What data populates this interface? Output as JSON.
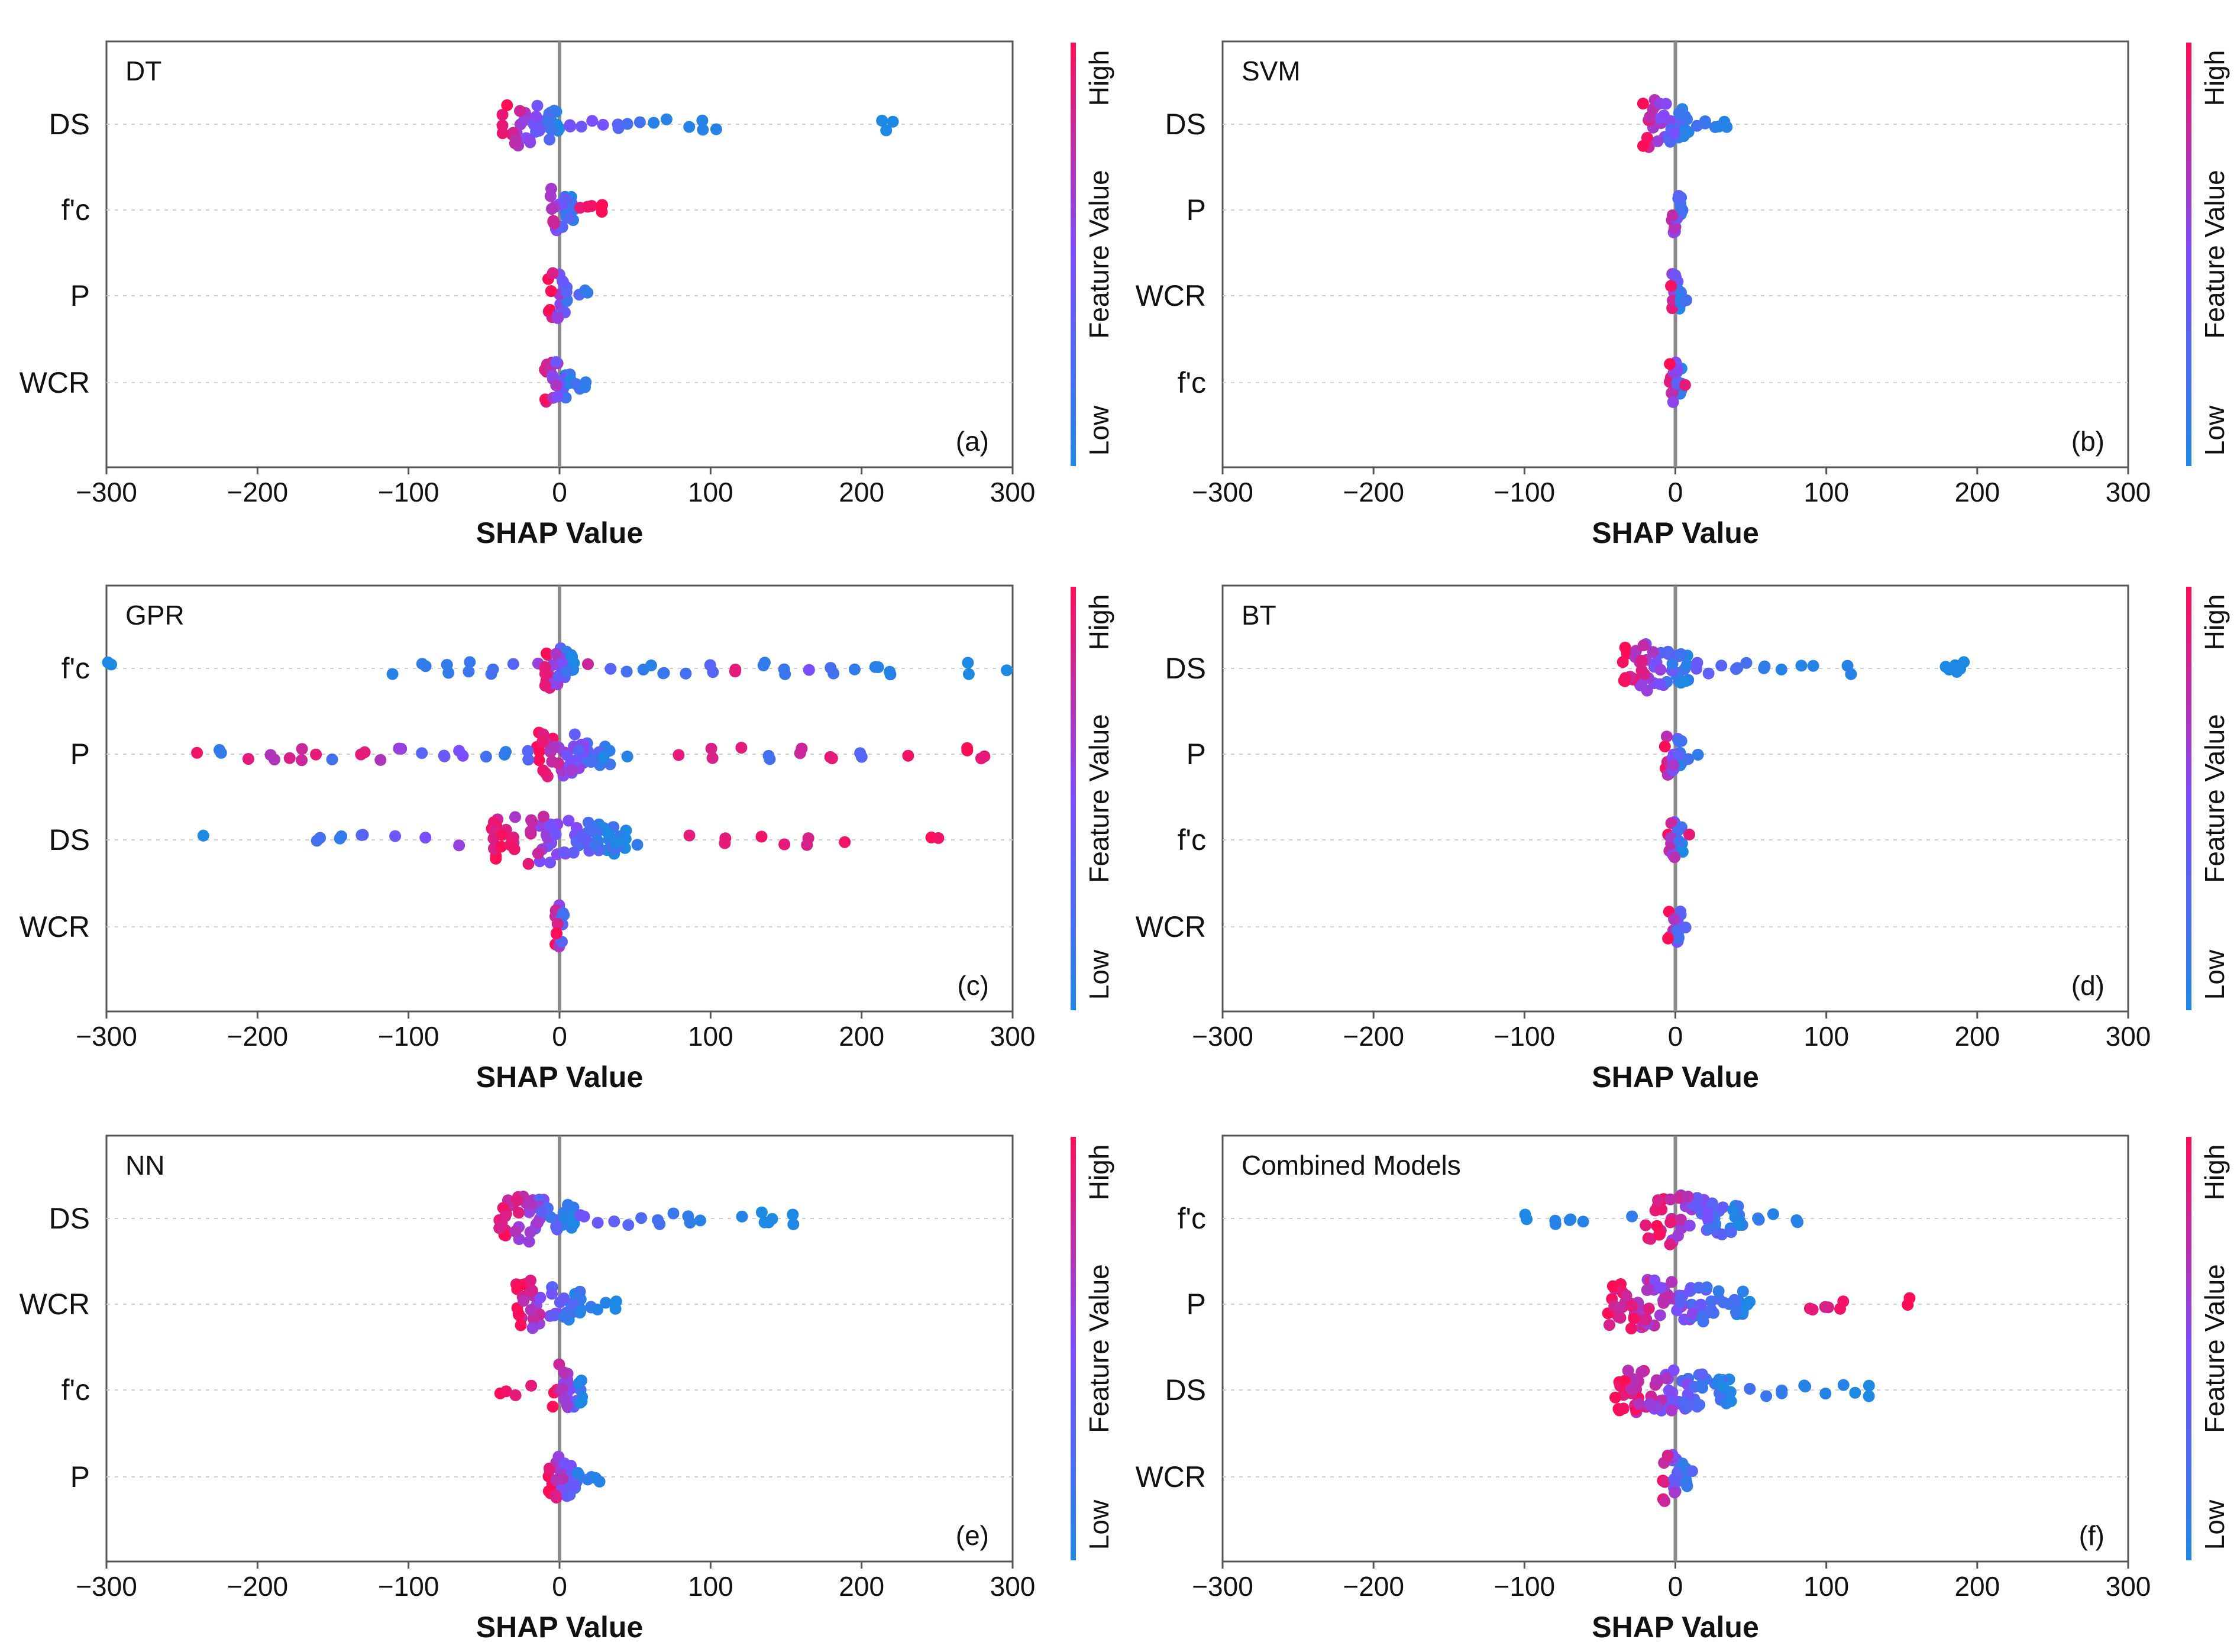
{
  "chart_data": [
    {
      "type": "scatter",
      "title": "DT",
      "panel_letter": "(a)",
      "xlabel": "SHAP Value",
      "xlim": [
        -300,
        300
      ],
      "xticks": [
        "−300",
        "−200",
        "−100",
        "0",
        "100",
        "200",
        "300"
      ],
      "features": [
        {
          "name": "DS",
          "core": [
            -38,
            0
          ],
          "tail": [
            [
              8,
              0.45
            ],
            [
              15,
              0.4
            ],
            [
              22,
              0.5
            ],
            [
              30,
              0.45
            ],
            [
              38,
              0.3
            ],
            [
              45,
              0.2
            ],
            [
              52,
              0.2
            ],
            [
              62,
              0.05
            ],
            [
              72,
              0.05
            ],
            [
              85,
              0.05
            ],
            [
              95,
              0.05
            ],
            [
              105,
              0.05
            ],
            [
              212,
              0.0
            ],
            [
              216,
              0.0
            ],
            [
              220,
              0.0
            ]
          ]
        },
        {
          "name": "f'c",
          "core": [
            -10,
            10
          ],
          "tail": [
            [
              15,
              0.9
            ],
            [
              20,
              0.95
            ],
            [
              28,
              1.0
            ]
          ]
        },
        {
          "name": "P",
          "core": [
            -8,
            8
          ],
          "tail": [
            [
              12,
              0.3
            ],
            [
              18,
              0.1
            ]
          ]
        },
        {
          "name": "WCR",
          "core": [
            -10,
            8
          ],
          "tail": [
            [
              12,
              0.2
            ],
            [
              18,
              0.1
            ]
          ]
        }
      ],
      "colorbar": {
        "high": "High",
        "low": "Low",
        "label": "Feature Value"
      }
    },
    {
      "type": "scatter",
      "title": "SVM",
      "panel_letter": "(b)",
      "xlabel": "SHAP Value",
      "xlim": [
        -300,
        300
      ],
      "xticks": [
        "−300",
        "−200",
        "−100",
        "0",
        "100",
        "200",
        "300"
      ],
      "features": [
        {
          "name": "DS",
          "core": [
            -22,
            10
          ],
          "tail": [
            [
              15,
              0.2
            ],
            [
              20,
              0.15
            ],
            [
              25,
              0.1
            ],
            [
              30,
              0.05
            ],
            [
              34,
              0.05
            ]
          ]
        },
        {
          "name": "P",
          "core": [
            -4,
            4
          ],
          "tail": [
            [
              6,
              0.2
            ]
          ]
        },
        {
          "name": "WCR",
          "core": [
            -4,
            4
          ],
          "tail": [
            [
              6,
              0.2
            ]
          ]
        },
        {
          "name": "f'c",
          "core": [
            -4,
            5
          ],
          "tail": [
            [
              7,
              0.9
            ]
          ]
        }
      ],
      "colorbar": {
        "high": "High",
        "low": "Low",
        "label": "Feature Value"
      }
    },
    {
      "type": "scatter",
      "title": "GPR",
      "panel_letter": "(c)",
      "xlabel": "SHAP Value",
      "xlim": [
        -300,
        300
      ],
      "xticks": [
        "−300",
        "−200",
        "−100",
        "0",
        "100",
        "200",
        "300"
      ],
      "features": [
        {
          "name": "f'c",
          "core": [
            -10,
            10
          ],
          "tail": [
            [
              -298,
              0.0
            ],
            [
              -110,
              0.05
            ],
            [
              -90,
              0.1
            ],
            [
              -75,
              0.1
            ],
            [
              -60,
              0.15
            ],
            [
              -45,
              0.2
            ],
            [
              -30,
              0.3
            ],
            [
              -15,
              0.6
            ],
            [
              -10,
              0.9
            ],
            [
              20,
              0.8
            ],
            [
              35,
              0.3
            ],
            [
              45,
              0.2
            ],
            [
              55,
              0.1
            ],
            [
              62,
              0.05
            ],
            [
              70,
              0.15
            ],
            [
              85,
              0.2
            ],
            [
              100,
              0.3
            ],
            [
              115,
              0.9
            ],
            [
              135,
              0.1
            ],
            [
              150,
              0.15
            ],
            [
              165,
              0.5
            ],
            [
              180,
              0.2
            ],
            [
              195,
              0.1
            ],
            [
              210,
              0.05
            ],
            [
              220,
              0.05
            ],
            [
              270,
              0.0
            ],
            [
              296,
              0.0
            ]
          ]
        },
        {
          "name": "P",
          "core": [
            -15,
            35
          ],
          "tail": [
            [
              -240,
              0.95
            ],
            [
              -225,
              0.1
            ],
            [
              -205,
              0.9
            ],
            [
              -190,
              0.7
            ],
            [
              -180,
              0.85
            ],
            [
              -170,
              0.8
            ],
            [
              -160,
              0.9
            ],
            [
              -150,
              0.2
            ],
            [
              -130,
              0.9
            ],
            [
              -120,
              0.7
            ],
            [
              -105,
              0.6
            ],
            [
              -90,
              0.3
            ],
            [
              -75,
              0.4
            ],
            [
              -65,
              0.5
            ],
            [
              -50,
              0.2
            ],
            [
              -35,
              0.1
            ],
            [
              -20,
              0.3
            ],
            [
              45,
              0.05
            ],
            [
              80,
              0.9
            ],
            [
              100,
              0.85
            ],
            [
              120,
              0.9
            ],
            [
              140,
              0.2
            ],
            [
              160,
              0.8
            ],
            [
              180,
              0.9
            ],
            [
              200,
              0.3
            ],
            [
              230,
              0.95
            ],
            [
              270,
              1.0
            ],
            [
              280,
              0.9
            ]
          ]
        },
        {
          "name": "DS",
          "core": [
            -45,
            45
          ],
          "tail": [
            [
              -235,
              0.0
            ],
            [
              -160,
              0.2
            ],
            [
              -145,
              0.1
            ],
            [
              -130,
              0.3
            ],
            [
              -110,
              0.4
            ],
            [
              -90,
              0.5
            ],
            [
              -65,
              0.6
            ],
            [
              50,
              0.1
            ],
            [
              85,
              0.9
            ],
            [
              110,
              0.9
            ],
            [
              135,
              0.95
            ],
            [
              150,
              0.9
            ],
            [
              165,
              0.85
            ],
            [
              190,
              0.95
            ],
            [
              245,
              1.0
            ],
            [
              250,
              0.95
            ]
          ]
        },
        {
          "name": "WCR",
          "core": [
            -3,
            3
          ],
          "tail": []
        }
      ],
      "colorbar": {
        "high": "High",
        "low": "Low",
        "label": "Feature Value"
      }
    },
    {
      "type": "scatter",
      "title": "BT",
      "panel_letter": "(d)",
      "xlabel": "SHAP Value",
      "xlim": [
        -300,
        300
      ],
      "xticks": [
        "−300",
        "−200",
        "−100",
        "0",
        "100",
        "200",
        "300"
      ],
      "features": [
        {
          "name": "DS",
          "core": [
            -35,
            10
          ],
          "tail": [
            [
              15,
              0.4
            ],
            [
              22,
              0.35
            ],
            [
              30,
              0.3
            ],
            [
              40,
              0.25
            ],
            [
              48,
              0.2
            ],
            [
              60,
              0.1
            ],
            [
              70,
              0.05
            ],
            [
              85,
              0.05
            ],
            [
              92,
              0.05
            ],
            [
              115,
              0.05
            ],
            [
              180,
              0.0
            ],
            [
              185,
              0.0
            ],
            [
              190,
              0.0
            ]
          ]
        },
        {
          "name": "P",
          "core": [
            -8,
            5
          ],
          "tail": [
            [
              10,
              0.2
            ],
            [
              15,
              0.1
            ]
          ]
        },
        {
          "name": "f'c",
          "core": [
            -5,
            5
          ],
          "tail": [
            [
              8,
              0.9
            ]
          ]
        },
        {
          "name": "WCR",
          "core": [
            -5,
            5
          ],
          "tail": [
            [
              8,
              0.3
            ]
          ]
        }
      ],
      "colorbar": {
        "high": "High",
        "low": "Low",
        "label": "Feature Value"
      }
    },
    {
      "type": "scatter",
      "title": "NN",
      "panel_letter": "(e)",
      "xlabel": "SHAP Value",
      "xlim": [
        -300,
        300
      ],
      "xticks": [
        "−300",
        "−200",
        "−100",
        "0",
        "100",
        "200",
        "300"
      ],
      "features": [
        {
          "name": "DS",
          "core": [
            -40,
            10
          ],
          "tail": [
            [
              15,
              0.45
            ],
            [
              25,
              0.4
            ],
            [
              35,
              0.35
            ],
            [
              45,
              0.3
            ],
            [
              55,
              0.25
            ],
            [
              65,
              0.2
            ],
            [
              75,
              0.15
            ],
            [
              85,
              0.1
            ],
            [
              92,
              0.05
            ],
            [
              120,
              0.05
            ],
            [
              135,
              0.0
            ],
            [
              140,
              0.0
            ],
            [
              155,
              0.0
            ]
          ]
        },
        {
          "name": "WCR",
          "core": [
            -30,
            15
          ],
          "tail": [
            [
              20,
              0.1
            ],
            [
              25,
              0.05
            ],
            [
              30,
              0.05
            ],
            [
              38,
              0.0
            ]
          ]
        },
        {
          "name": "f'c",
          "core": [
            -5,
            15
          ],
          "tail": [
            [
              -40,
              1.0
            ],
            [
              -35,
              0.95
            ],
            [
              -28,
              0.9
            ],
            [
              -20,
              0.9
            ]
          ]
        },
        {
          "name": "P",
          "core": [
            -8,
            15
          ],
          "tail": [
            [
              20,
              0.1
            ],
            [
              25,
              0.05
            ]
          ]
        }
      ],
      "colorbar": {
        "high": "High",
        "low": "Low",
        "label": "Feature Value"
      }
    },
    {
      "type": "scatter",
      "title": "Combined Models",
      "panel_letter": "(f)",
      "xlabel": "SHAP Value",
      "xlim": [
        -300,
        300
      ],
      "xticks": [
        "−300",
        "−200",
        "−100",
        "0",
        "100",
        "200",
        "300"
      ],
      "features": [
        {
          "name": "f'c",
          "core": [
            -20,
            45
          ],
          "tail": [
            [
              -100,
              0.0
            ],
            [
              -80,
              0.05
            ],
            [
              -70,
              0.05
            ],
            [
              -60,
              0.05
            ],
            [
              -30,
              0.1
            ],
            [
              55,
              0.1
            ],
            [
              65,
              0.05
            ],
            [
              80,
              0.05
            ]
          ]
        },
        {
          "name": "P",
          "core": [
            -45,
            50
          ],
          "tail": [
            [
              90,
              0.9
            ],
            [
              100,
              0.85
            ],
            [
              110,
              0.95
            ],
            [
              155,
              1.0
            ]
          ]
        },
        {
          "name": "DS",
          "core": [
            -40,
            40
          ],
          "tail": [
            [
              50,
              0.2
            ],
            [
              60,
              0.15
            ],
            [
              70,
              0.1
            ],
            [
              85,
              0.05
            ],
            [
              100,
              0.05
            ],
            [
              110,
              0.05
            ],
            [
              120,
              0.0
            ],
            [
              128,
              0.0
            ]
          ]
        },
        {
          "name": "WCR",
          "core": [
            -10,
            8
          ],
          "tail": [
            [
              12,
              0.3
            ]
          ]
        }
      ],
      "colorbar": {
        "high": "High",
        "low": "Low",
        "label": "Feature Value"
      }
    }
  ]
}
